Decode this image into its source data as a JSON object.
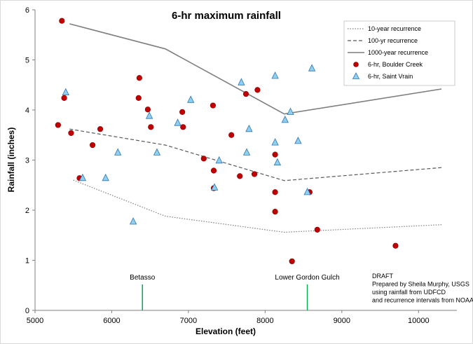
{
  "chart_data": {
    "type": "scatter",
    "title": "6-hr maximum rainfall",
    "xlabel": "Elevation (feet)",
    "ylabel": "Rainfall (inches)",
    "xlim": [
      5000,
      10500
    ],
    "ylim": [
      0,
      6
    ],
    "xticks": [
      "5000",
      "6000",
      "7000",
      "8000",
      "9000",
      "10000"
    ],
    "yticks": [
      "0",
      "1",
      "2",
      "3",
      "4",
      "5",
      "6"
    ],
    "grid": false,
    "legend_position": "top-right",
    "series": [
      {
        "name": "10-year recurrence",
        "kind": "line",
        "style": "dotted",
        "color": "#7f7f7f",
        "points": [
          [
            5500,
            2.6
          ],
          [
            6700,
            1.88
          ],
          [
            8250,
            1.56
          ],
          [
            10300,
            1.71
          ]
        ]
      },
      {
        "name": "100-yr recurrence",
        "kind": "line",
        "style": "dashed",
        "color": "#595959",
        "points": [
          [
            5450,
            3.62
          ],
          [
            6700,
            3.3
          ],
          [
            8250,
            2.59
          ],
          [
            10300,
            2.85
          ]
        ]
      },
      {
        "name": "1000-year recurrence",
        "kind": "line",
        "style": "solid",
        "color": "#7f7f7f",
        "points": [
          [
            5450,
            5.72
          ],
          [
            6700,
            5.22
          ],
          [
            8250,
            3.92
          ],
          [
            10300,
            4.42
          ]
        ]
      },
      {
        "name": "6-hr, Boulder Creek",
        "kind": "scatter",
        "marker": "circle",
        "color": "#c00000",
        "points": [
          [
            5350,
            5.78
          ],
          [
            5380,
            4.24
          ],
          [
            5300,
            3.7
          ],
          [
            5470,
            3.54
          ],
          [
            5580,
            2.64
          ],
          [
            5750,
            3.3
          ],
          [
            5850,
            3.62
          ],
          [
            6360,
            4.64
          ],
          [
            6350,
            4.24
          ],
          [
            6470,
            4.01
          ],
          [
            6510,
            3.66
          ],
          [
            6920,
            3.96
          ],
          [
            6930,
            3.66
          ],
          [
            7200,
            3.03
          ],
          [
            7320,
            4.09
          ],
          [
            7330,
            2.79
          ],
          [
            7330,
            2.44
          ],
          [
            7560,
            3.5
          ],
          [
            7670,
            2.68
          ],
          [
            7750,
            4.32
          ],
          [
            7860,
            2.72
          ],
          [
            7900,
            4.4
          ],
          [
            8130,
            3.11
          ],
          [
            8130,
            2.36
          ],
          [
            8130,
            1.97
          ],
          [
            8350,
            0.98
          ],
          [
            8580,
            2.36
          ],
          [
            8680,
            1.61
          ],
          [
            9700,
            1.29
          ]
        ]
      },
      {
        "name": "6-hr, Saint Vrain",
        "kind": "scatter",
        "marker": "triangle",
        "color": "#8fd0ee",
        "points": [
          [
            5400,
            4.35
          ],
          [
            5620,
            2.64
          ],
          [
            5920,
            2.64
          ],
          [
            6080,
            3.15
          ],
          [
            6280,
            1.77
          ],
          [
            6490,
            3.88
          ],
          [
            6590,
            3.15
          ],
          [
            6860,
            3.74
          ],
          [
            7030,
            4.2
          ],
          [
            7340,
            2.45
          ],
          [
            7400,
            2.99
          ],
          [
            7690,
            4.55
          ],
          [
            7760,
            3.15
          ],
          [
            7790,
            3.62
          ],
          [
            8130,
            4.68
          ],
          [
            8130,
            3.35
          ],
          [
            8160,
            2.95
          ],
          [
            8260,
            3.8
          ],
          [
            8330,
            3.96
          ],
          [
            8430,
            3.38
          ],
          [
            8550,
            2.36
          ],
          [
            8610,
            4.83
          ]
        ]
      }
    ],
    "markers": [
      {
        "label": "Betasso",
        "x": 6400,
        "color": "#00b050"
      },
      {
        "label": "Lower Gordon Gulch",
        "x": 8550,
        "color": "#00b050"
      }
    ],
    "annotation": [
      "DRAFT",
      "Prepared by Sheila Murphy, USGS",
      "using rainfall from UDFCD",
      "and recurrence intervals from NOAA"
    ]
  }
}
